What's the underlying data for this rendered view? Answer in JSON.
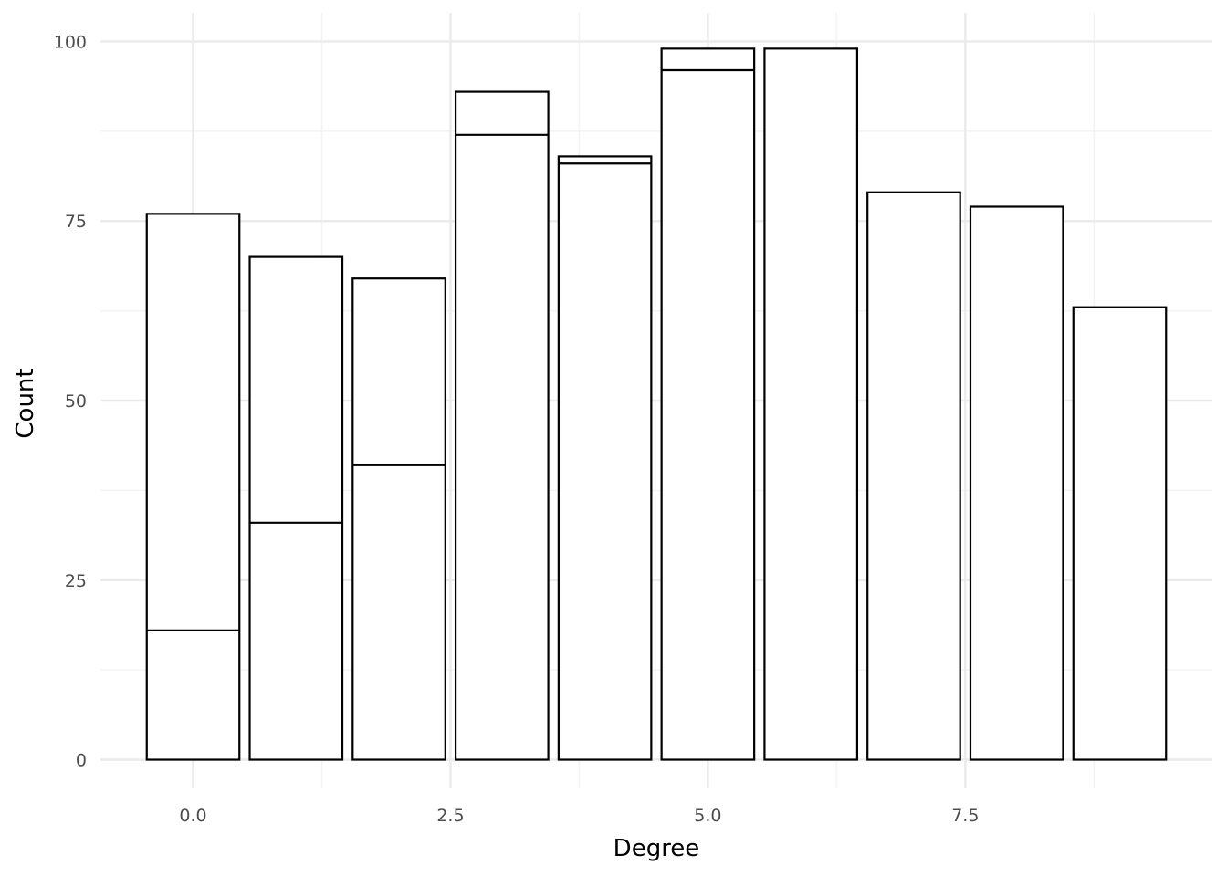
{
  "chart_data": {
    "type": "bar",
    "title": "",
    "xlabel": "Degree",
    "ylabel": "Count",
    "x": [
      0,
      1,
      2,
      3,
      4,
      5,
      6,
      7,
      8,
      9
    ],
    "segments": [
      [
        18,
        76
      ],
      [
        33,
        70
      ],
      [
        41,
        67
      ],
      [
        87,
        93
      ],
      [
        83,
        84
      ],
      [
        96,
        99
      ],
      [
        99
      ],
      [
        79
      ],
      [
        77
      ],
      [
        63
      ]
    ],
    "xlim": [
      -0.9,
      9.9
    ],
    "ylim": [
      -4,
      104
    ],
    "xticks": [
      0.0,
      2.5,
      5.0,
      7.5
    ],
    "xtick_labels": [
      "0.0",
      "2.5",
      "5.0",
      "7.5"
    ],
    "yticks": [
      0,
      25,
      50,
      75,
      100
    ],
    "ytick_labels": [
      "0",
      "25",
      "50",
      "75",
      "100"
    ],
    "grid": true,
    "legend": "none",
    "colors": {
      "bar_fill": "#ffffff",
      "bar_stroke": "#000000",
      "grid_major": "#ebebeb",
      "grid_minor": "#f3f3f3",
      "tick_text": "#4d4d4d"
    }
  }
}
